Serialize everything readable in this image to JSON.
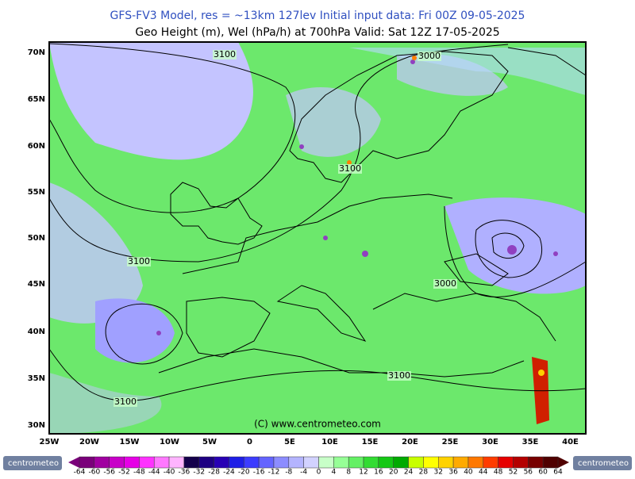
{
  "header": {
    "title": "GFS-FV3 Model, res = ~13km 127lev   Initial input data: Fri 00Z 09-05-2025",
    "subtitle": "Geo Height (m), Wel (hPa/h) at 700hPa  Valid: Sat 12Z 17-05-2025"
  },
  "map": {
    "lat_labels": [
      "70N",
      "65N",
      "60N",
      "55N",
      "50N",
      "45N",
      "40N",
      "35N",
      "30N"
    ],
    "lon_labels": [
      "25W",
      "20W",
      "15W",
      "10W",
      "5W",
      "0",
      "5E",
      "10E",
      "15E",
      "20E",
      "25E",
      "30E",
      "35E",
      "40E"
    ],
    "contour_labels": [
      "3100",
      "3000",
      "3100",
      "3100",
      "3000",
      "3100",
      "3100"
    ],
    "credit": "(C) www.centrometeo.com"
  },
  "colorbar": {
    "labels": [
      "-64",
      "-60",
      "-56",
      "-52",
      "-48",
      "-44",
      "-40",
      "-36",
      "-32",
      "-28",
      "-24",
      "-20",
      "-16",
      "-12",
      "-8",
      "-4",
      "0",
      "4",
      "8",
      "12",
      "16",
      "20",
      "24",
      "28",
      "32",
      "36",
      "40",
      "44",
      "48",
      "52",
      "56",
      "60",
      "64"
    ],
    "colors": [
      "#7a007a",
      "#a000a0",
      "#c800c8",
      "#e600e6",
      "#ff32ff",
      "#ff78ff",
      "#ffb4ff",
      "#14004b",
      "#1e0082",
      "#2800b4",
      "#1e1ee6",
      "#3c3cff",
      "#6464ff",
      "#8c8cff",
      "#b4b4ff",
      "#d2d2ff",
      "#c8ffc8",
      "#96ff96",
      "#64f064",
      "#32dc32",
      "#14c814",
      "#00aa00",
      "#c8ff00",
      "#ffff00",
      "#ffd200",
      "#ffaa00",
      "#ff7800",
      "#ff3c00",
      "#e60000",
      "#b40000",
      "#780000",
      "#500000"
    ]
  },
  "logo": {
    "left": "centrometeo",
    "right": "centrometeo"
  }
}
